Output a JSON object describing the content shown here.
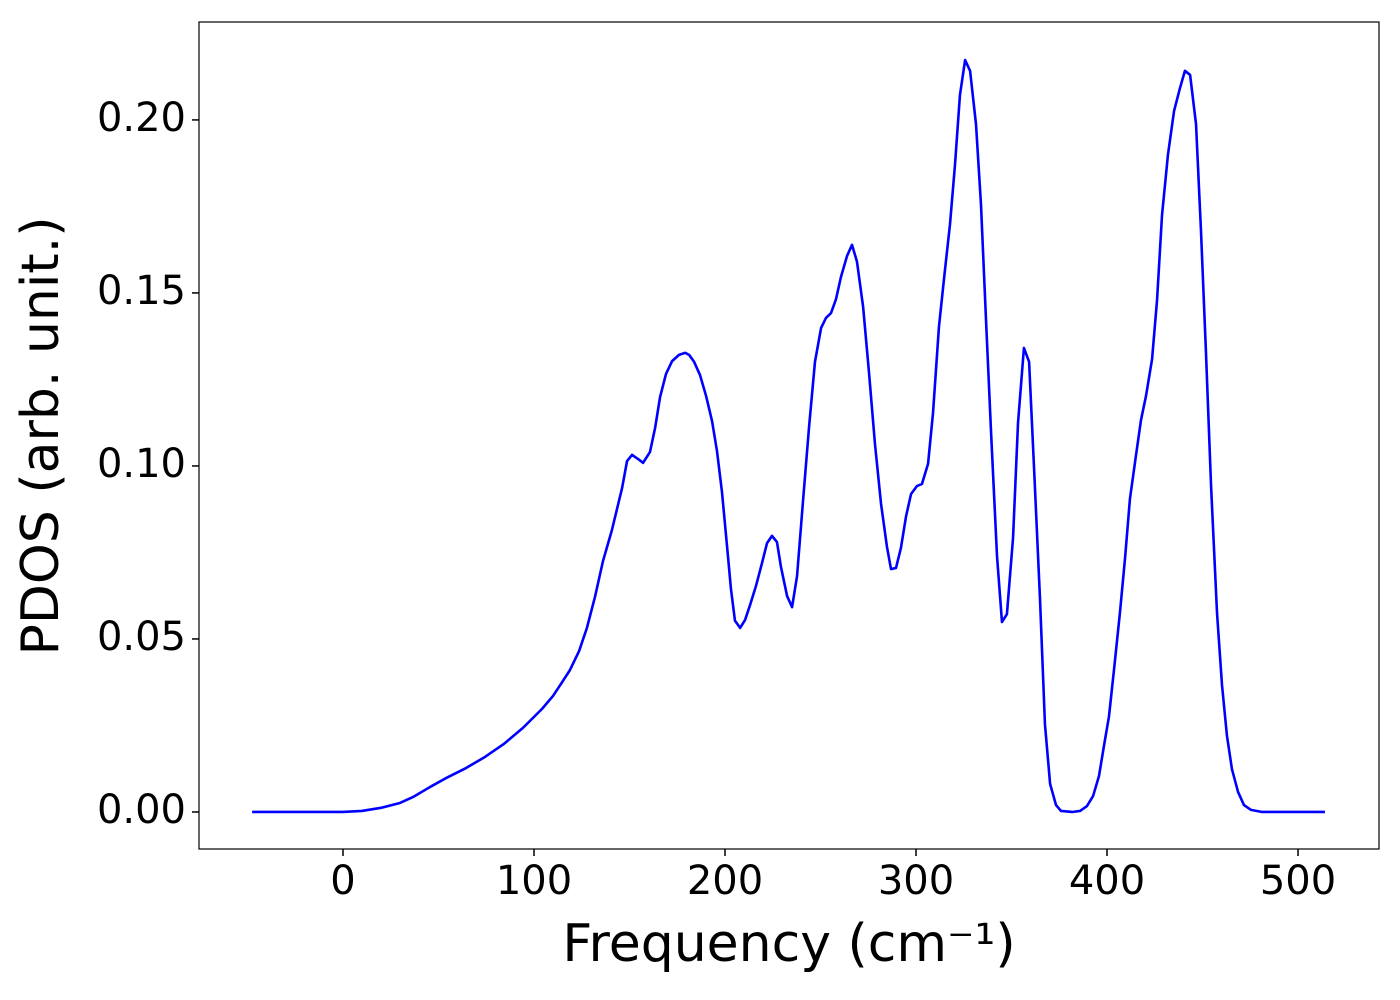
{
  "chart_data": {
    "type": "line",
    "xlabel": "Frequency (cm⁻¹)",
    "ylabel": "PDOS (arb. unit.)",
    "xlim": [
      -75.4,
      542.4
    ],
    "ylim": [
      -0.0107,
      0.2283
    ],
    "xticks": [
      0,
      100,
      200,
      300,
      400,
      500
    ],
    "yticks": [
      {
        "value": 0,
        "label": "0.00"
      },
      {
        "value": 0.05,
        "label": "0.05"
      },
      {
        "value": 0.1,
        "label": "0.10"
      },
      {
        "value": 0.15,
        "label": "0.15"
      },
      {
        "value": 0.2,
        "label": "0.20"
      }
    ],
    "grid": false,
    "series": [
      {
        "color": "#0000ff",
        "x": [
          -47.6,
          0,
          9.9,
          19.9,
          29.8,
          36.6,
          45.5,
          55.0,
          64.4,
          74.3,
          84.3,
          94.2,
          104.2,
          109.9,
          114.1,
          118.8,
          123.6,
          127.7,
          131.9,
          136.1,
          140.8,
          146.1,
          148.7,
          151.3,
          154.5,
          157.1,
          160.7,
          163.4,
          166.0,
          169.1,
          172.3,
          175.9,
          179.1,
          181.2,
          183.8,
          186.9,
          190.1,
          193.2,
          195.8,
          198.4,
          201.0,
          203.1,
          205.2,
          207.9,
          210.5,
          213.1,
          216.2,
          219.4,
          222.0,
          224.6,
          227.2,
          229.3,
          232.5,
          235.1,
          237.7,
          240.8,
          244.0,
          247.1,
          250.3,
          252.9,
          255.5,
          258.1,
          260.7,
          263.9,
          266.5,
          269.1,
          272.3,
          275.4,
          278.5,
          281.7,
          284.8,
          286.9,
          289.5,
          292.1,
          294.8,
          297.4,
          300.5,
          303.1,
          306.3,
          308.9,
          312.0,
          314.7,
          317.8,
          320.4,
          323.0,
          325.7,
          328.3,
          331.4,
          334.0,
          336.6,
          339.3,
          342.4,
          345.0,
          347.6,
          350.8,
          353.4,
          356.5,
          359.2,
          361.8,
          364.9,
          367.5,
          370.2,
          373.3,
          375.9,
          381.7,
          385.9,
          389.5,
          392.7,
          395.8,
          398.4,
          401.0,
          403.7,
          406.8,
          409.4,
          412.0,
          415.2,
          417.8,
          420.4,
          423.6,
          426.2,
          428.8,
          431.9,
          435.1,
          438.2,
          440.8,
          443.5,
          446.6,
          449.2,
          451.8,
          454.5,
          457.6,
          460.2,
          462.8,
          465.4,
          468.6,
          471.7,
          475.4,
          481.2,
          514.1
        ],
        "values": [
          0,
          0,
          0.0003,
          0.0012,
          0.0026,
          0.0043,
          0.0072,
          0.0101,
          0.0127,
          0.0159,
          0.0197,
          0.0243,
          0.0298,
          0.0335,
          0.037,
          0.041,
          0.0465,
          0.0532,
          0.0621,
          0.0725,
          0.0815,
          0.0936,
          0.1014,
          0.1032,
          0.102,
          0.1009,
          0.104,
          0.111,
          0.1199,
          0.1266,
          0.1303,
          0.1321,
          0.1327,
          0.1321,
          0.1301,
          0.1263,
          0.1202,
          0.113,
          0.1043,
          0.0925,
          0.0772,
          0.0645,
          0.0553,
          0.0532,
          0.0555,
          0.0598,
          0.0653,
          0.072,
          0.0777,
          0.0798,
          0.078,
          0.0708,
          0.0624,
          0.0592,
          0.0681,
          0.0896,
          0.1113,
          0.1301,
          0.1399,
          0.1428,
          0.1442,
          0.1482,
          0.1546,
          0.1607,
          0.1639,
          0.159,
          0.146,
          0.1269,
          0.1064,
          0.089,
          0.0766,
          0.0702,
          0.0705,
          0.0763,
          0.0855,
          0.0919,
          0.0942,
          0.0948,
          0.1006,
          0.1153,
          0.1402,
          0.1543,
          0.1699,
          0.187,
          0.2072,
          0.2173,
          0.2142,
          0.1988,
          0.1757,
          0.1428,
          0.1096,
          0.074,
          0.0549,
          0.0572,
          0.0792,
          0.1124,
          0.1341,
          0.1301,
          0.0994,
          0.0618,
          0.0254,
          0.0081,
          0.002,
          0.0003,
          0,
          0.0003,
          0.0017,
          0.0046,
          0.0104,
          0.0191,
          0.0275,
          0.0413,
          0.0578,
          0.0731,
          0.0905,
          0.1032,
          0.1133,
          0.1202,
          0.1309,
          0.148,
          0.1725,
          0.1899,
          0.2026,
          0.2092,
          0.2142,
          0.213,
          0.1988,
          0.1679,
          0.1329,
          0.0939,
          0.0575,
          0.0367,
          0.022,
          0.0124,
          0.0058,
          0.002,
          0.0006,
          0,
          0
        ]
      }
    ]
  }
}
